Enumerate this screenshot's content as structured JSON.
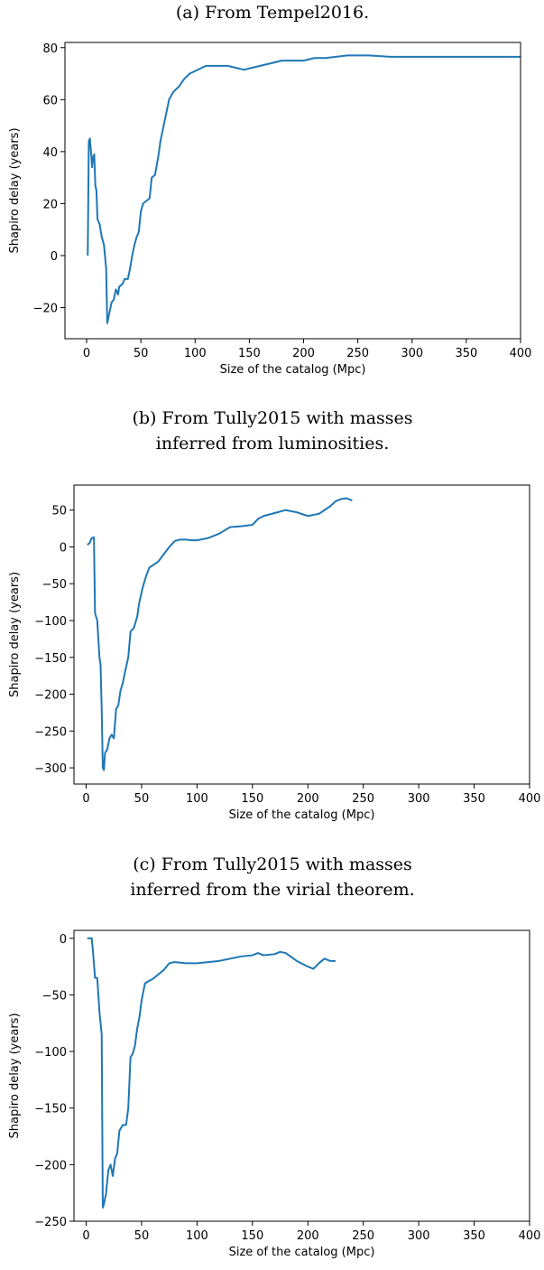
{
  "chart_data": [
    {
      "type": "line",
      "title": [
        "(a) From Tempel2016."
      ],
      "xlabel": "Size of the catalog (Mpc)",
      "ylabel": "Shapiro delay (years)",
      "color": "#1f77b4",
      "x": [
        1,
        2,
        3,
        4,
        5,
        6,
        7,
        8,
        9,
        10,
        12,
        14,
        16,
        18,
        19,
        21,
        23,
        25,
        27,
        29,
        30,
        33,
        35,
        38,
        40,
        42,
        44,
        46,
        48,
        50,
        52,
        55,
        58,
        60,
        63,
        66,
        68,
        72,
        76,
        80,
        85,
        90,
        95,
        100,
        110,
        120,
        130,
        140,
        145,
        150,
        160,
        170,
        180,
        190,
        200,
        210,
        220,
        240,
        260,
        280,
        300,
        350,
        400
      ],
      "values": [
        0,
        44,
        45,
        40,
        34,
        38,
        39,
        27,
        25,
        14,
        12,
        7,
        4,
        -5,
        -26,
        -22,
        -18,
        -17,
        -13,
        -15,
        -12,
        -11,
        -9,
        -9,
        -5,
        0,
        4,
        7,
        9,
        17,
        20,
        21,
        22,
        30,
        31,
        38,
        44,
        52,
        60,
        63,
        65,
        68,
        70,
        71,
        73,
        73,
        73,
        72,
        71.5,
        72,
        73,
        74,
        75,
        75,
        75,
        76,
        76,
        77,
        77,
        76.5,
        76.5,
        76.5,
        76.5
      ],
      "xlim": [
        -20,
        400
      ],
      "ylim": [
        -32,
        82
      ],
      "xticks": [
        0,
        50,
        100,
        150,
        200,
        250,
        300,
        350,
        400
      ],
      "yticks": [
        {
          "value": -20,
          "label": "−20"
        },
        0,
        20,
        40,
        60,
        80
      ]
    },
    {
      "type": "line",
      "title": [
        "(b) From Tully2015 with masses",
        "inferred from luminosities."
      ],
      "xlabel": "Size of the catalog (Mpc)",
      "ylabel": "Shapiro delay (years)",
      "color": "#1f77b4",
      "x": [
        1,
        3,
        5,
        7,
        8,
        10,
        12,
        13,
        14,
        15,
        16,
        17,
        19,
        21,
        23,
        25,
        27,
        29,
        31,
        33,
        35,
        38,
        40,
        43,
        46,
        48,
        51,
        54,
        57,
        60,
        65,
        70,
        75,
        80,
        85,
        90,
        95,
        100,
        110,
        120,
        130,
        140,
        150,
        155,
        160,
        170,
        180,
        190,
        200,
        210,
        220,
        225,
        230,
        235,
        240
      ],
      "values": [
        3,
        5,
        12,
        13,
        -90,
        -100,
        -150,
        -160,
        -220,
        -300,
        -303,
        -280,
        -275,
        -260,
        -255,
        -260,
        -220,
        -215,
        -195,
        -185,
        -170,
        -150,
        -115,
        -110,
        -95,
        -75,
        -55,
        -40,
        -28,
        -25,
        -20,
        -10,
        0,
        8,
        10,
        10,
        9,
        9,
        12,
        18,
        27,
        28,
        30,
        38,
        42,
        46,
        50,
        47,
        42,
        45,
        55,
        62,
        65,
        66,
        63
      ],
      "xlim": [
        -11,
        400
      ],
      "ylim": [
        -322,
        84
      ],
      "xticks": [
        0,
        50,
        100,
        150,
        200,
        250,
        300,
        350,
        400
      ],
      "yticks": [
        {
          "value": -300,
          "label": "−300"
        },
        {
          "value": -250,
          "label": "−250"
        },
        {
          "value": -200,
          "label": "−200"
        },
        {
          "value": -150,
          "label": "−150"
        },
        {
          "value": -100,
          "label": "−100"
        },
        {
          "value": -50,
          "label": "−50"
        },
        0,
        50
      ]
    },
    {
      "type": "line",
      "title": [
        "(c) From Tully2015 with masses",
        "inferred from the virial theorem."
      ],
      "xlabel": "Size of the catalog (Mpc)",
      "ylabel": "Shapiro delay (years)",
      "color": "#1f77b4",
      "x": [
        1,
        5,
        6,
        8,
        10,
        12,
        14,
        15,
        16,
        18,
        20,
        22,
        24,
        26,
        28,
        30,
        33,
        36,
        38,
        40,
        42,
        44,
        46,
        48,
        50,
        53,
        56,
        60,
        65,
        70,
        75,
        80,
        90,
        100,
        110,
        120,
        130,
        140,
        150,
        155,
        160,
        170,
        175,
        180,
        190,
        200,
        205,
        210,
        215,
        220,
        225
      ],
      "values": [
        0,
        0,
        -10,
        -35,
        -35,
        -65,
        -85,
        -238,
        -235,
        -225,
        -205,
        -200,
        -210,
        -195,
        -190,
        -170,
        -165,
        -165,
        -150,
        -105,
        -102,
        -95,
        -80,
        -70,
        -55,
        -40,
        -38,
        -36,
        -32,
        -28,
        -22,
        -21,
        -22,
        -22,
        -21,
        -20,
        -18,
        -16,
        -15,
        -13,
        -15,
        -14,
        -12,
        -13,
        -20,
        -25,
        -27,
        -22,
        -18,
        -20,
        -20
      ],
      "xlim": [
        -11,
        400
      ],
      "ylim": [
        -250,
        7
      ],
      "xticks": [
        0,
        50,
        100,
        150,
        200,
        250,
        300,
        350,
        400
      ],
      "yticks": [
        {
          "value": -250,
          "label": "−250"
        },
        {
          "value": -200,
          "label": "−200"
        },
        {
          "value": -150,
          "label": "−150"
        },
        {
          "value": -100,
          "label": "−100"
        },
        {
          "value": -50,
          "label": "−50"
        },
        0
      ]
    }
  ]
}
